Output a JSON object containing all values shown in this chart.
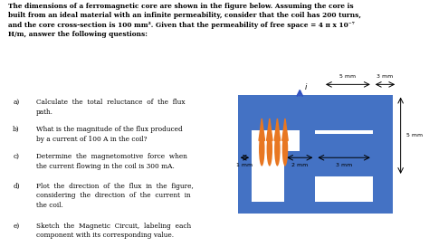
{
  "core_color": "#4472C4",
  "coil_color": "#E87722",
  "arrow_color": "#3050C0",
  "bg_color": "#FFFFFF",
  "title_line1": "The dimensions of a ferromagnetic core are shown in the figure below. Assuming the core is",
  "title_line2": "built from an ideal material with an infinite permeability, consider that the coil has 200 turns,",
  "title_line3": "and the core cross-section is 100 mm². Given that the permeability of free space = 4 π x 10⁻⁷",
  "title_line4": "H/m, answer the following questions:",
  "q_a_label": "a)",
  "q_a_text": "Calculate  the  total  reluctance  of  the  flux\npath.",
  "q_b_label": "b)",
  "q_b_text": "What is the magnitude of the flux produced\nby a current of 100 A in the coil?",
  "q_c_label": "c)",
  "q_c_text": "Determine  the  magnetomotive  force  when\nthe current flowing in the coil is 300 mA.",
  "q_d_label": "d)",
  "q_d_text": "Plot  the  direction  of  the  flux  in  the  figure,\nconsidering  the  direction  of  the  current  in\nthe coil.",
  "q_e_label": "e)",
  "q_e_text": "Sketch  the  Magnetic  Circuit,  labeling  each\ncomponent with its corresponding value.",
  "dim_5mm_top": "5 mm",
  "dim_3mm_top": "3 mm",
  "dim_5mm_right": "5 mm",
  "dim_1mm": "1 mm",
  "dim_2mm": "2 mm",
  "dim_3mm": "3 mm",
  "current_label": "i"
}
